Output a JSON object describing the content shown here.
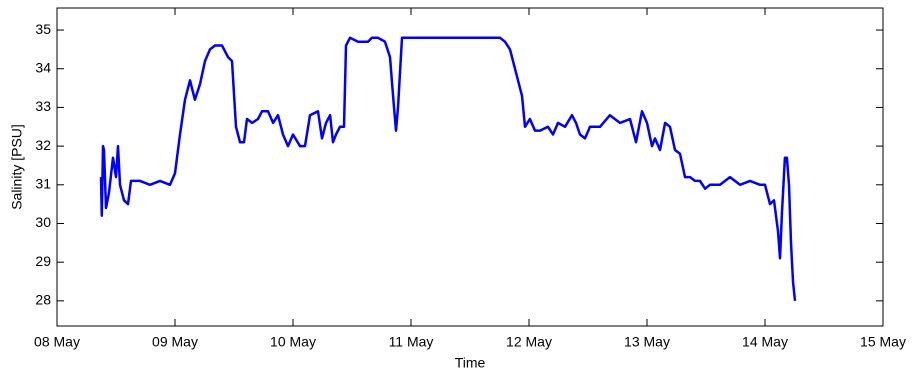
{
  "chart_data": {
    "type": "line",
    "x_label": "Time",
    "y_label": "Salinity [PSU]",
    "xlim": [
      8,
      15
    ],
    "xticks": [
      {
        "value": 8,
        "label": "08 May"
      },
      {
        "value": 9,
        "label": "09 May"
      },
      {
        "value": 10,
        "label": "10 May"
      },
      {
        "value": 11,
        "label": "11 May"
      },
      {
        "value": 12,
        "label": "12 May"
      },
      {
        "value": 13,
        "label": "13 May"
      },
      {
        "value": 14,
        "label": "14 May"
      },
      {
        "value": 15,
        "label": "15 May"
      }
    ],
    "ylim": [
      27.35,
      35.57
    ],
    "yticks": [
      28,
      29,
      30,
      31,
      32,
      33,
      34,
      35
    ],
    "series": [
      {
        "color": "#0000ff",
        "x": [
          8.373,
          8.38,
          8.39,
          8.398,
          8.415,
          8.441,
          8.475,
          8.5,
          8.517,
          8.534,
          8.568,
          8.602,
          8.627,
          8.703,
          8.788,
          8.873,
          8.958,
          9.0,
          9.042,
          9.085,
          9.127,
          9.169,
          9.212,
          9.254,
          9.297,
          9.339,
          9.398,
          9.449,
          9.483,
          9.517,
          9.551,
          9.585,
          9.61,
          9.653,
          9.703,
          9.737,
          9.788,
          9.831,
          9.873,
          9.915,
          9.958,
          10.0,
          10.059,
          10.102,
          10.144,
          10.212,
          10.246,
          10.28,
          10.314,
          10.339,
          10.364,
          10.398,
          10.432,
          10.449,
          10.483,
          10.551,
          10.636,
          10.669,
          10.72,
          10.78,
          10.822,
          10.856,
          10.873,
          10.89,
          10.924,
          11.076,
          11.246,
          11.415,
          11.585,
          11.754,
          11.797,
          11.839,
          11.864,
          11.898,
          11.941,
          11.966,
          12.008,
          12.051,
          12.093,
          12.161,
          12.203,
          12.246,
          12.305,
          12.364,
          12.398,
          12.432,
          12.475,
          12.517,
          12.602,
          12.686,
          12.771,
          12.856,
          12.907,
          12.958,
          13.0,
          13.042,
          13.068,
          13.11,
          13.153,
          13.195,
          13.237,
          13.28,
          13.322,
          13.364,
          13.407,
          13.449,
          13.492,
          13.534,
          13.619,
          13.703,
          13.788,
          13.873,
          13.958,
          14.0,
          14.042,
          14.076,
          14.11,
          14.127,
          14.144,
          14.169,
          14.186,
          14.203,
          14.22,
          14.237,
          14.254
        ],
        "values": [
          31.2,
          30.2,
          32.0,
          31.9,
          30.4,
          30.8,
          31.7,
          31.2,
          32.0,
          31.0,
          30.6,
          30.5,
          31.1,
          31.1,
          31.0,
          31.1,
          31.0,
          31.3,
          32.3,
          33.2,
          33.7,
          33.2,
          33.6,
          34.2,
          34.5,
          34.6,
          34.6,
          34.3,
          34.2,
          32.5,
          32.1,
          32.1,
          32.7,
          32.6,
          32.7,
          32.9,
          32.9,
          32.6,
          32.8,
          32.3,
          32.0,
          32.3,
          32.0,
          32.0,
          32.8,
          32.9,
          32.2,
          32.6,
          32.8,
          32.1,
          32.3,
          32.5,
          32.5,
          34.6,
          34.8,
          34.7,
          34.7,
          34.8,
          34.8,
          34.7,
          34.3,
          33.0,
          32.4,
          33.0,
          34.8,
          34.8,
          34.8,
          34.8,
          34.8,
          34.8,
          34.7,
          34.5,
          34.2,
          33.8,
          33.3,
          32.5,
          32.7,
          32.4,
          32.4,
          32.5,
          32.3,
          32.6,
          32.5,
          32.8,
          32.6,
          32.3,
          32.2,
          32.5,
          32.5,
          32.8,
          32.6,
          32.7,
          32.1,
          32.9,
          32.6,
          32.0,
          32.2,
          31.9,
          32.6,
          32.5,
          31.9,
          31.8,
          31.2,
          31.2,
          31.1,
          31.1,
          30.9,
          31.0,
          31.0,
          31.2,
          31.0,
          31.1,
          31.0,
          31.0,
          30.5,
          30.6,
          29.8,
          29.1,
          30.3,
          31.7,
          31.7,
          31.0,
          29.5,
          28.5,
          28.0
        ]
      }
    ]
  }
}
